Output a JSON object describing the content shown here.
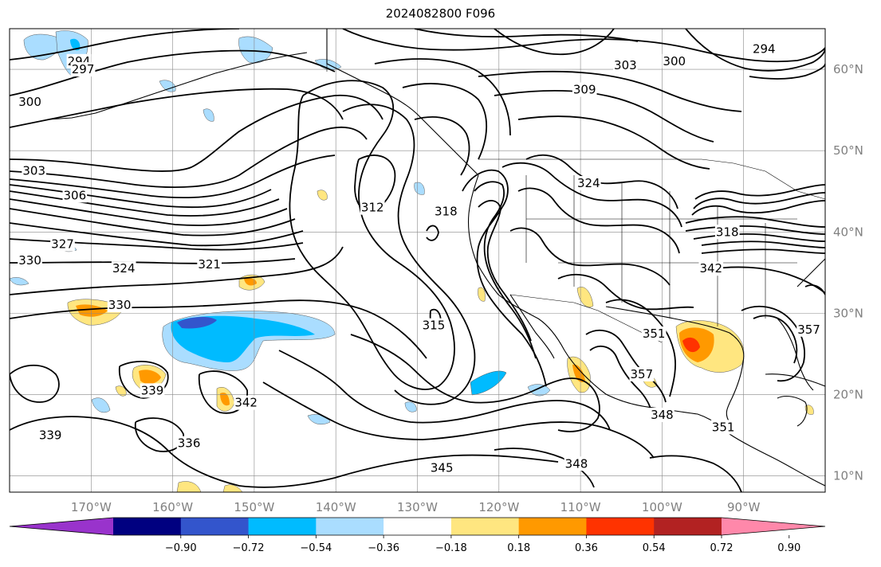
{
  "figure": {
    "title": "2024082800 F096"
  },
  "map": {
    "projection": "PlateCarree",
    "extent_lon": [
      -180,
      -80
    ],
    "extent_lat": [
      8,
      65
    ],
    "gridlines": true,
    "lon_ticks": [
      "170°W",
      "160°W",
      "150°W",
      "140°W",
      "130°W",
      "120°W",
      "110°W",
      "100°W",
      "90°W"
    ],
    "lat_ticks": [
      "60°N",
      "50°N",
      "40°N",
      "30°N",
      "20°N",
      "10°N"
    ],
    "contour_color": "#000000",
    "contour_labels": [
      {
        "text": "294",
        "lon": -171.5,
        "lat": 61.0
      },
      {
        "text": "297",
        "lon": -171.0,
        "lat": 60.0
      },
      {
        "text": "300",
        "lon": -177.5,
        "lat": 56.0
      },
      {
        "text": "303",
        "lon": -177.0,
        "lat": 47.5
      },
      {
        "text": "306",
        "lon": -172.0,
        "lat": 44.5
      },
      {
        "text": "327",
        "lon": -173.5,
        "lat": 38.5
      },
      {
        "text": "330",
        "lon": -177.5,
        "lat": 36.5
      },
      {
        "text": "324",
        "lon": -166.0,
        "lat": 35.5
      },
      {
        "text": "321",
        "lon": -155.5,
        "lat": 36.0
      },
      {
        "text": "330",
        "lon": -166.5,
        "lat": 31.0
      },
      {
        "text": "339",
        "lon": -162.5,
        "lat": 20.5
      },
      {
        "text": "342",
        "lon": -151.0,
        "lat": 19.0
      },
      {
        "text": "339",
        "lon": -175.0,
        "lat": 15.0
      },
      {
        "text": "336",
        "lon": -158.0,
        "lat": 14.0
      },
      {
        "text": "312",
        "lon": -135.5,
        "lat": 43.0
      },
      {
        "text": "318",
        "lon": -126.5,
        "lat": 42.5
      },
      {
        "text": "315",
        "lon": -128.0,
        "lat": 28.5
      },
      {
        "text": "345",
        "lon": -127.0,
        "lat": 11.0
      },
      {
        "text": "348",
        "lon": -110.5,
        "lat": 11.5
      },
      {
        "text": "324",
        "lon": -109.0,
        "lat": 46.0
      },
      {
        "text": "303",
        "lon": -104.5,
        "lat": 60.5
      },
      {
        "text": "300",
        "lon": -98.5,
        "lat": 61.0
      },
      {
        "text": "309",
        "lon": -109.5,
        "lat": 57.5
      },
      {
        "text": "294",
        "lon": -87.5,
        "lat": 62.5
      },
      {
        "text": "318",
        "lon": -92.0,
        "lat": 40.0
      },
      {
        "text": "342",
        "lon": -94.0,
        "lat": 35.5
      },
      {
        "text": "351",
        "lon": -101.0,
        "lat": 27.5
      },
      {
        "text": "357",
        "lon": -102.5,
        "lat": 22.5
      },
      {
        "text": "348",
        "lon": -100.0,
        "lat": 17.5
      },
      {
        "text": "351",
        "lon": -92.5,
        "lat": 16.0
      },
      {
        "text": "357",
        "lon": -82.0,
        "lat": 28.0
      }
    ]
  },
  "colorbar": {
    "orientation": "horizontal",
    "extend": "both",
    "ticks": [
      "−0.90",
      "−0.72",
      "−0.54",
      "−0.36",
      "−0.18",
      "0.18",
      "0.36",
      "0.54",
      "0.72",
      "0.90"
    ],
    "colors": [
      "#9933cc",
      "#000080",
      "#3355cc",
      "#00bbff",
      "#aaddff",
      "#ffffff",
      "#ffe680",
      "#ff9900",
      "#ff3300",
      "#b22222",
      "#ff88aa"
    ]
  }
}
